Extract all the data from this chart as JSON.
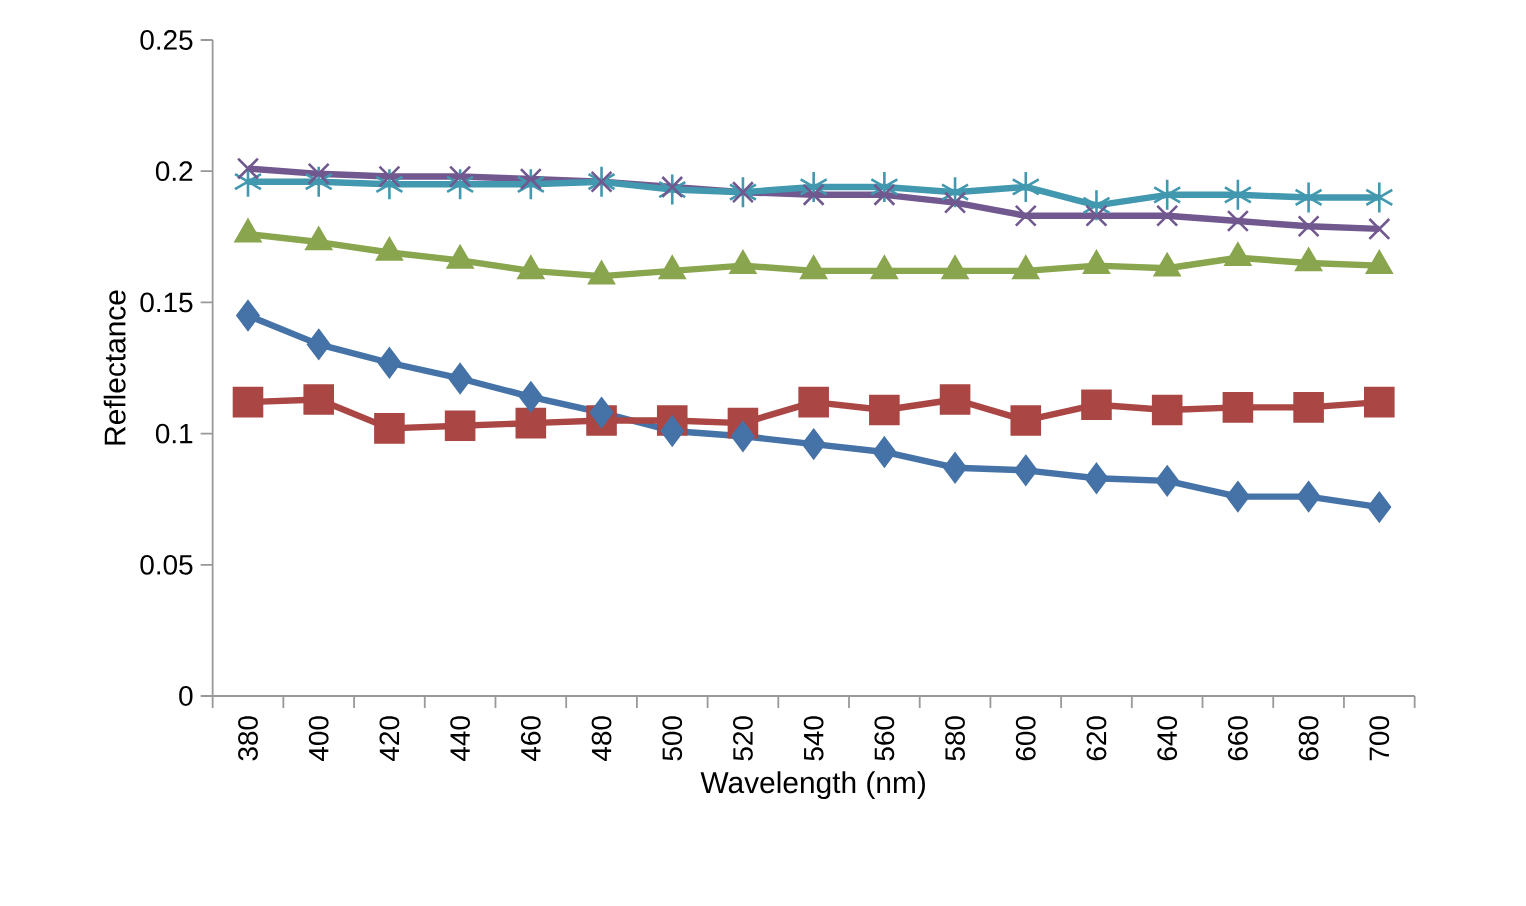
{
  "chart_data": {
    "type": "line",
    "xlabel": "Wavelength (nm)",
    "ylabel": "Reflectance",
    "categories": [
      "380",
      "400",
      "420",
      "440",
      "460",
      "480",
      "500",
      "520",
      "540",
      "560",
      "580",
      "600",
      "620",
      "640",
      "660",
      "680",
      "700"
    ],
    "ylim": [
      0,
      0.25
    ],
    "yticks": [
      {
        "value": 0,
        "label": "0"
      },
      0.05,
      {
        "value": 0.1,
        "label": "0.1"
      },
      0.15,
      {
        "value": 0.2,
        "label": "0.2"
      },
      0.25
    ],
    "grid": false,
    "legend": false,
    "line_style": "solid",
    "series": [
      {
        "color": "#4572a7",
        "marker": "diamond",
        "values": [
          0.145,
          0.134,
          0.127,
          0.121,
          0.114,
          0.108,
          0.101,
          0.099,
          0.096,
          0.093,
          0.087,
          0.086,
          0.083,
          0.082,
          0.076,
          0.076,
          0.072
        ]
      },
      {
        "color": "#aa4643",
        "marker": "square",
        "values": [
          0.112,
          0.113,
          0.102,
          0.103,
          0.104,
          0.105,
          0.105,
          0.104,
          0.112,
          0.109,
          0.113,
          0.105,
          0.111,
          0.109,
          0.11,
          0.11,
          0.112
        ]
      },
      {
        "color": "#89a54e",
        "marker": "triangle",
        "values": [
          0.176,
          0.173,
          0.169,
          0.166,
          0.162,
          0.16,
          0.162,
          0.164,
          0.162,
          0.162,
          0.162,
          0.162,
          0.164,
          0.163,
          0.167,
          0.165,
          0.164
        ]
      },
      {
        "color": "#71588f",
        "marker": "cross",
        "values": [
          0.201,
          0.199,
          0.198,
          0.198,
          0.197,
          0.196,
          0.194,
          0.192,
          0.191,
          0.191,
          0.188,
          0.183,
          0.183,
          0.183,
          0.181,
          0.179,
          0.178
        ]
      },
      {
        "color": "#4198af",
        "marker": "cross",
        "values": [
          0.196,
          0.196,
          0.195,
          0.195,
          0.195,
          0.196,
          0.193,
          0.192,
          0.194,
          0.194,
          0.192,
          0.194,
          0.187,
          0.191,
          0.191,
          0.19,
          0.19
        ]
      }
    ]
  }
}
